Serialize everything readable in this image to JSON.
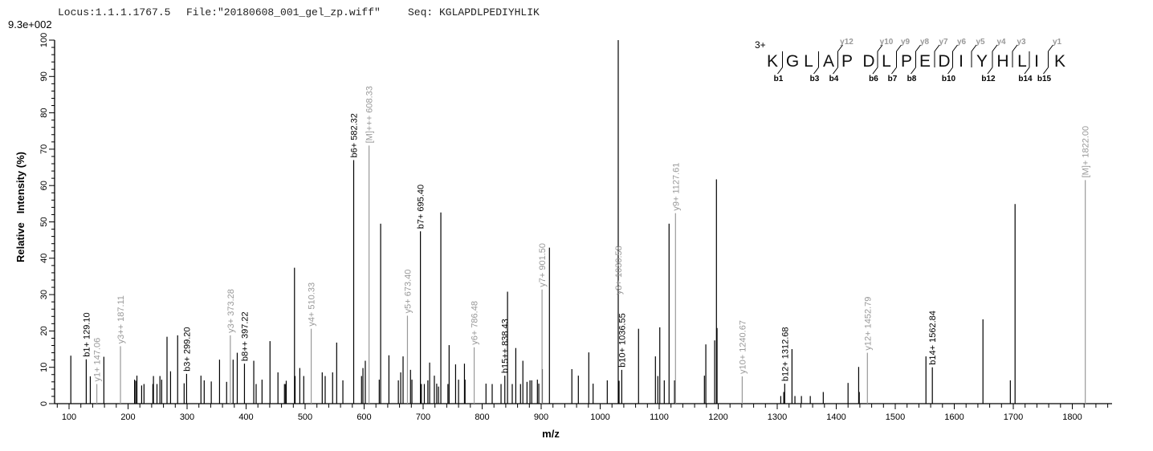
{
  "header": {
    "locus": "Locus:1.1.1.1767.5",
    "file": "File:\"20180608_001_gel_zp.wiff\"",
    "seq": "Seq: KGLAPDLPEDIYHLIK",
    "scale": "9.3e+002"
  },
  "colors": {
    "b_ion": "#000000",
    "y_ion": "#999999",
    "peak": "#000000",
    "axis": "#000000"
  },
  "chart_data": {
    "type": "bar",
    "subtype": "mass spectrum (stick plot)",
    "xlabel": "m/z",
    "ylabel": "Relative   Intensity (%)",
    "xlim": [
      85,
      1868
    ],
    "ylim": [
      0,
      100
    ],
    "xticks": [
      100,
      200,
      300,
      400,
      500,
      600,
      700,
      800,
      900,
      1000,
      1100,
      1200,
      1300,
      1400,
      1500,
      1600,
      1700,
      1800
    ],
    "yticks": [
      0,
      10,
      20,
      30,
      40,
      50,
      60,
      70,
      80,
      90,
      100
    ],
    "grid": false,
    "peaks": [
      [
        103,
        13.2
      ],
      [
        136,
        7.5
      ],
      [
        159,
        12.9
      ],
      [
        211,
        6.6
      ],
      [
        213,
        6.3
      ],
      [
        215,
        7.7
      ],
      [
        223,
        5
      ],
      [
        227,
        5.4
      ],
      [
        242,
        5.4
      ],
      [
        243,
        7.6
      ],
      [
        249,
        5.4
      ],
      [
        254,
        7.6
      ],
      [
        257,
        6.6
      ],
      [
        266,
        18.4
      ],
      [
        272,
        8.9
      ],
      [
        284,
        18.8
      ],
      [
        295,
        5.6
      ],
      [
        323.5,
        7.7
      ],
      [
        329,
        6.4
      ],
      [
        341,
        6.1
      ],
      [
        355,
        12.1
      ],
      [
        367,
        6
      ],
      [
        378,
        12.1
      ],
      [
        385,
        14
      ],
      [
        413,
        11.8
      ],
      [
        417,
        5.4
      ],
      [
        427,
        6.6
      ],
      [
        440.5,
        17.2
      ],
      [
        454,
        8.6
      ],
      [
        465,
        5.4
      ],
      [
        467,
        5.4
      ],
      [
        468,
        6.3
      ],
      [
        482,
        37.4
      ],
      [
        483,
        7.6
      ],
      [
        491,
        9.8
      ],
      [
        497.7,
        7.6
      ],
      [
        529,
        8.6
      ],
      [
        534,
        7.6
      ],
      [
        546.6,
        8.6
      ],
      [
        553.5,
        16.8
      ],
      [
        564,
        6.4
      ],
      [
        595.6,
        7.6
      ],
      [
        598,
        9.8
      ],
      [
        602,
        11.8
      ],
      [
        625.6,
        6.6
      ],
      [
        628,
        49.5
      ],
      [
        642,
        13.3
      ],
      [
        658,
        6.4
      ],
      [
        662,
        8.6
      ],
      [
        666,
        13
      ],
      [
        678.6,
        9.3
      ],
      [
        681,
        6.6
      ],
      [
        697,
        5.4
      ],
      [
        702,
        5.4
      ],
      [
        708,
        6.4
      ],
      [
        711,
        11.3
      ],
      [
        719,
        7.7
      ],
      [
        723,
        5.5
      ],
      [
        726,
        4.7
      ],
      [
        730,
        52.6
      ],
      [
        742,
        5.4
      ],
      [
        744,
        16.1
      ],
      [
        755,
        10.8
      ],
      [
        760,
        6.6
      ],
      [
        770,
        11
      ],
      [
        771,
        6.6
      ],
      [
        806.5,
        5.5
      ],
      [
        817,
        5.4
      ],
      [
        832,
        5.4
      ],
      [
        843,
        30.8
      ],
      [
        851,
        5.4
      ],
      [
        857,
        15.3
      ],
      [
        865,
        5.4
      ],
      [
        869,
        11.8
      ],
      [
        876,
        6
      ],
      [
        881,
        6.4
      ],
      [
        884,
        6.4
      ],
      [
        893.6,
        6.6
      ],
      [
        896,
        5.5
      ],
      [
        902,
        9.5
      ],
      [
        914,
        42.9
      ],
      [
        952,
        9.5
      ],
      [
        963,
        7.7
      ],
      [
        980.7,
        14.1
      ],
      [
        988,
        5.5
      ],
      [
        1012,
        6.4
      ],
      [
        1032,
        6.3
      ],
      [
        1065,
        20.6
      ],
      [
        1093.6,
        13
      ],
      [
        1097.7,
        7.6
      ],
      [
        1101,
        21
      ],
      [
        1108.6,
        6.4
      ],
      [
        1116.7,
        49.5
      ],
      [
        1126,
        6.4
      ],
      [
        1176.6,
        7.7
      ],
      [
        1179,
        16.3
      ],
      [
        1194,
        17.4
      ],
      [
        1197,
        61.7
      ],
      [
        1198,
        20.8
      ],
      [
        1306,
        2.1
      ],
      [
        1311,
        3.2
      ],
      [
        1325,
        15
      ],
      [
        1330,
        2.1
      ],
      [
        1341,
        2.1
      ],
      [
        1356,
        2.1
      ],
      [
        1378,
        3.2
      ],
      [
        1420,
        5.7
      ],
      [
        1438,
        10.1
      ],
      [
        1439,
        3.2
      ],
      [
        1552,
        13
      ],
      [
        1648.6,
        23.2
      ],
      [
        1695,
        6.4
      ],
      [
        1703,
        54.9
      ]
    ],
    "annotated_peaks": [
      {
        "mz": 129.1,
        "intensity": 12.2,
        "label": "b1+ 129.10",
        "ion": "b"
      },
      {
        "mz": 147.06,
        "intensity": 5.4,
        "label": "y1+ 147.06",
        "ion": "y"
      },
      {
        "mz": 187.11,
        "intensity": 15.8,
        "label": "y3++ 187.11",
        "ion": "y"
      },
      {
        "mz": 299.2,
        "intensity": 8.2,
        "label": "b3+ 299.20",
        "ion": "b"
      },
      {
        "mz": 373.28,
        "intensity": 18.8,
        "label": "y3+ 373.28",
        "ion": "y"
      },
      {
        "mz": 397.22,
        "intensity": 11,
        "label": "b8++ 397.22",
        "ion": "b"
      },
      {
        "mz": 510.33,
        "intensity": 20.6,
        "label": "y4+ 510.33",
        "ion": "y"
      },
      {
        "mz": 582.32,
        "intensity": 67,
        "label": "b6+ 582.32",
        "ion": "b"
      },
      {
        "mz": 608.33,
        "intensity": 71,
        "label": "[M]+++ 608.33",
        "ion": "y"
      },
      {
        "mz": 673.4,
        "intensity": 24.2,
        "label": "y5+ 673.40",
        "ion": "y"
      },
      {
        "mz": 695.4,
        "intensity": 47.4,
        "label": "b7+ 695.40",
        "ion": "b"
      },
      {
        "mz": 786.48,
        "intensity": 15.5,
        "label": "y6+ 786.48",
        "ion": "y"
      },
      {
        "mz": 838.43,
        "intensity": 7.7,
        "label": "b15++ 838.43",
        "ion": "b"
      },
      {
        "mz": 901.5,
        "intensity": 31.4,
        "label": "y7+ 901.50",
        "ion": "y"
      },
      {
        "mz": 1030.58,
        "intensity": 100,
        "label": "y8+ 1030.58",
        "ion": "y"
      },
      {
        "mz": 1036.55,
        "intensity": 9.3,
        "label": "b10+ 1036.55",
        "ion": "b"
      },
      {
        "mz": 1127.61,
        "intensity": 52.4,
        "label": "y9+ 1127.61",
        "ion": "y"
      },
      {
        "mz": 1240.67,
        "intensity": 7.5,
        "label": "y10+ 1240.67",
        "ion": "y"
      },
      {
        "mz": 1312.68,
        "intensity": 5.5,
        "label": "b12+ 1312.68",
        "ion": "b"
      },
      {
        "mz": 1452.79,
        "intensity": 14,
        "label": "y12+ 1452.79",
        "ion": "y"
      },
      {
        "mz": 1562.84,
        "intensity": 10,
        "label": "b14+ 1562.84",
        "ion": "b"
      },
      {
        "mz": 1822.0,
        "intensity": 61.5,
        "label": "[M]+ 1822.00",
        "ion": "y"
      }
    ]
  },
  "fragment_map": {
    "charge": "3+",
    "residues": [
      "K",
      "G",
      "L",
      "A",
      "P",
      "D",
      "L",
      "P",
      "E",
      "D",
      "I",
      "Y",
      "H",
      "L",
      "I",
      "K"
    ],
    "b_ions": [
      1,
      3,
      4,
      6,
      7,
      8,
      10,
      12,
      14,
      15
    ],
    "y_ions": [
      12,
      10,
      9,
      8,
      7,
      6,
      5,
      4,
      3,
      1
    ]
  }
}
